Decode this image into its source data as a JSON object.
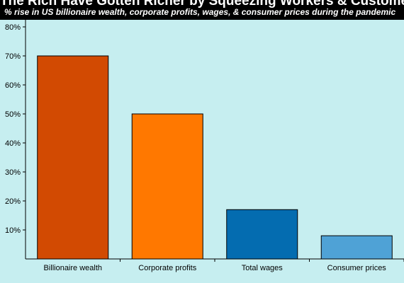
{
  "title": "The Rich Have Gotten Richer by Squeezing Workers & Customers",
  "subtitle": "% rise in US billionaire wealth, corporate profits, wages, & consumer prices during the pandemic",
  "chart_data": {
    "type": "bar",
    "title": "The Rich Have Gotten Richer by Squeezing Workers & Customers",
    "subtitle": "% rise in US billionaire wealth, corporate profits, wages, & consumer prices during the pandemic",
    "categories": [
      "Billionaire wealth",
      "Corporate profits",
      "Total wages",
      "Consumer prices"
    ],
    "values": [
      70,
      50,
      17,
      8
    ],
    "bar_colors": [
      "#d24a02",
      "#ff7800",
      "#046cb0",
      "#4fa2d6"
    ],
    "ylim": [
      0,
      80
    ],
    "yticks": [
      10,
      20,
      30,
      40,
      50,
      60,
      70,
      80
    ],
    "ytick_labels": [
      "10%",
      "20%",
      "30%",
      "40%",
      "50%",
      "60%",
      "70%",
      "80%"
    ],
    "xlabel": "",
    "ylabel": "",
    "grid": false,
    "legend": "none",
    "plot_background": "#c6eef0"
  }
}
